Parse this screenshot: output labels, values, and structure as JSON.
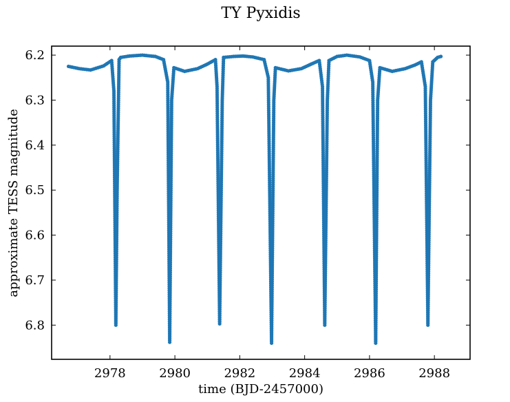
{
  "chart_data": {
    "type": "scatter",
    "title": "TY Pyxidis",
    "xlabel": "time (BJD-2457000)",
    "ylabel": "approximate TESS magnitude",
    "xlim": [
      2976.2,
      2989.1
    ],
    "ylim": [
      6.18,
      6.876
    ],
    "y_inverted": true,
    "grid": false,
    "marker_color": "#1f77b4",
    "x_ticks": [
      2978,
      2980,
      2982,
      2984,
      2986,
      2988
    ],
    "y_ticks": [
      6.2,
      6.3,
      6.4,
      6.5,
      6.6,
      6.7,
      6.8
    ],
    "x_tick_labels": [
      "2978",
      "2980",
      "2982",
      "2984",
      "2986",
      "2988"
    ],
    "y_tick_labels": [
      "6.2",
      "6.3",
      "6.4",
      "6.5",
      "6.6",
      "6.7",
      "6.8"
    ],
    "series": [
      {
        "points": [
          [
            2976.72,
            6.225
          ],
          [
            2977.05,
            6.23
          ],
          [
            2977.4,
            6.233
          ],
          [
            2977.8,
            6.224
          ],
          [
            2978.05,
            6.212
          ],
          [
            2978.12,
            6.28
          ],
          [
            2978.18,
            6.8
          ],
          [
            2978.22,
            6.5
          ],
          [
            2978.28,
            6.21
          ],
          [
            2978.33,
            6.205
          ],
          [
            2978.6,
            6.202
          ],
          [
            2979.0,
            6.2
          ],
          [
            2979.4,
            6.203
          ],
          [
            2979.65,
            6.21
          ],
          [
            2979.78,
            6.26
          ],
          [
            2979.84,
            6.838
          ],
          [
            2979.9,
            6.3
          ],
          [
            2979.97,
            6.228
          ],
          [
            2980.3,
            6.236
          ],
          [
            2980.7,
            6.23
          ],
          [
            2981.0,
            6.22
          ],
          [
            2981.25,
            6.21
          ],
          [
            2981.3,
            6.27
          ],
          [
            2981.38,
            6.797
          ],
          [
            2981.46,
            6.3
          ],
          [
            2981.5,
            6.205
          ],
          [
            2981.8,
            6.203
          ],
          [
            2982.1,
            6.202
          ],
          [
            2982.4,
            6.204
          ],
          [
            2982.75,
            6.21
          ],
          [
            2982.88,
            6.25
          ],
          [
            2982.98,
            6.84
          ],
          [
            2983.05,
            6.3
          ],
          [
            2983.1,
            6.228
          ],
          [
            2983.5,
            6.235
          ],
          [
            2983.9,
            6.23
          ],
          [
            2984.2,
            6.22
          ],
          [
            2984.45,
            6.212
          ],
          [
            2984.55,
            6.27
          ],
          [
            2984.62,
            6.8
          ],
          [
            2984.7,
            6.3
          ],
          [
            2984.75,
            6.212
          ],
          [
            2985.0,
            6.203
          ],
          [
            2985.3,
            6.2
          ],
          [
            2985.7,
            6.204
          ],
          [
            2986.0,
            6.212
          ],
          [
            2986.1,
            6.26
          ],
          [
            2986.19,
            6.84
          ],
          [
            2986.25,
            6.3
          ],
          [
            2986.32,
            6.228
          ],
          [
            2986.7,
            6.236
          ],
          [
            2987.1,
            6.23
          ],
          [
            2987.4,
            6.222
          ],
          [
            2987.6,
            6.215
          ],
          [
            2987.72,
            6.27
          ],
          [
            2987.8,
            6.8
          ],
          [
            2987.88,
            6.3
          ],
          [
            2987.95,
            6.215
          ],
          [
            2988.1,
            6.205
          ],
          [
            2988.2,
            6.203
          ]
        ]
      }
    ]
  }
}
